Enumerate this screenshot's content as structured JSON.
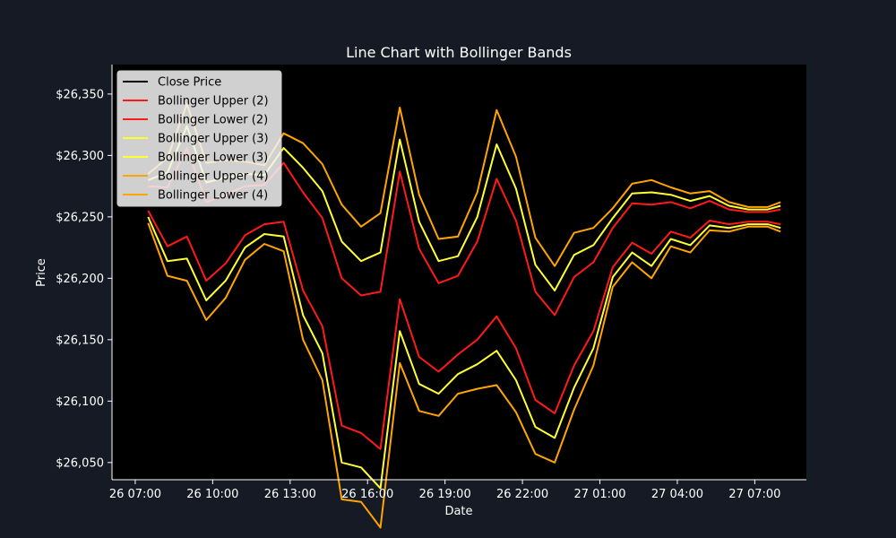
{
  "chart_data": {
    "type": "line",
    "title": "Line Chart with Bollinger Bands",
    "xlabel": "Date",
    "ylabel": "Price",
    "x_ticks": [
      "26 07:00",
      "26 10:00",
      "26 13:00",
      "26 16:00",
      "26 19:00",
      "26 22:00",
      "27 01:00",
      "27 04:00",
      "27 07:00"
    ],
    "x_tick_hours": [
      7,
      10,
      13,
      16,
      19,
      22,
      25,
      28,
      31
    ],
    "xlim": [
      6.1,
      33.0
    ],
    "y_ticks": [
      26050,
      26100,
      26150,
      26200,
      26250,
      26300,
      26350
    ],
    "y_tick_labels": [
      "$26,050",
      "$26,100",
      "$26,150",
      "$26,200",
      "$26,250",
      "$26,300",
      "$26,350"
    ],
    "ylim": [
      26036,
      26374
    ],
    "legend_position": "upper-left",
    "grid": false,
    "x": [
      7.5,
      8.25,
      9.0,
      9.75,
      10.5,
      11.25,
      12.0,
      12.75,
      13.5,
      14.25,
      15.0,
      15.75,
      16.5,
      17.25,
      18.0,
      18.75,
      19.5,
      20.25,
      21.0,
      21.75,
      22.5,
      23.25,
      24.0,
      24.75,
      25.5,
      26.25,
      27.0,
      27.75,
      28.5,
      29.25,
      30.0,
      30.75,
      31.5,
      32.0
    ],
    "close": [
      26265,
      26250,
      26270,
      26230,
      26240,
      26255,
      26260,
      26270,
      26230,
      26205,
      26140,
      26130,
      26125,
      26235,
      26180,
      26160,
      26170,
      26190,
      26225,
      26195,
      26145,
      26130,
      26165,
      26185,
      26225,
      26245,
      26240,
      26250,
      26245,
      26255,
      26250,
      26250,
      26250,
      26250
    ],
    "series": [
      {
        "name": "Close Price",
        "color": "#000000",
        "key": "close",
        "mult": 0
      },
      {
        "name": "Bollinger Upper (2)",
        "color": "#ff1a1a",
        "key": "upper",
        "mult": 2
      },
      {
        "name": "Bollinger Lower (2)",
        "color": "#ff1a1a",
        "key": "lower",
        "mult": 2
      },
      {
        "name": "Bollinger Upper (3)",
        "color": "#ffff33",
        "key": "upper",
        "mult": 3
      },
      {
        "name": "Bollinger Lower (3)",
        "color": "#ffff33",
        "key": "lower",
        "mult": 3
      },
      {
        "name": "Bollinger Upper (4)",
        "color": "#ffa500",
        "key": "upper",
        "mult": 4
      },
      {
        "name": "Bollinger Lower (4)",
        "color": "#ffa500",
        "key": "lower",
        "mult": 4
      }
    ],
    "std": [
      5,
      12,
      18,
      16,
      14,
      10,
      8,
      12,
      20,
      22,
      30,
      28,
      32,
      26,
      22,
      18,
      16,
      20,
      28,
      26,
      22,
      20,
      18,
      14,
      8,
      8,
      10,
      6,
      6,
      4,
      3,
      2,
      2,
      3
    ]
  }
}
